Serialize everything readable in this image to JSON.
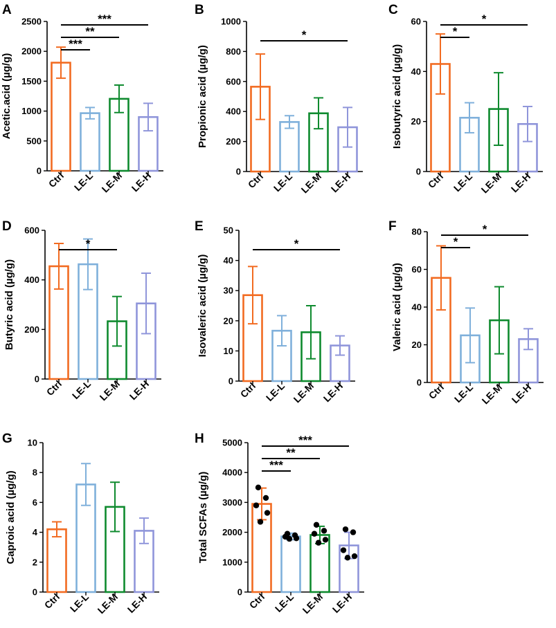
{
  "colors": {
    "Ctrl": "#F26B21",
    "LE-L": "#7FB0DB",
    "LE-M": "#0E8A2E",
    "LE-H": "#8F95DA"
  },
  "chart_data": [
    {
      "panel": "A",
      "type": "bar",
      "ylabel": "Acetic.acid (µg/g)",
      "categories": [
        "Ctrl",
        "LE-L",
        "LE-M",
        "LE-H"
      ],
      "values": [
        1810,
        965,
        1205,
        900
      ],
      "errors": [
        260,
        95,
        230,
        230
      ],
      "ylim": [
        0,
        2500
      ],
      "yticks": [
        "0",
        "500",
        "1000",
        "1500",
        "2000",
        "2500"
      ],
      "significance": [
        {
          "from": "Ctrl",
          "to": "LE-L",
          "label": "***"
        },
        {
          "from": "Ctrl",
          "to": "LE-M",
          "label": "**"
        },
        {
          "from": "Ctrl",
          "to": "LE-H",
          "label": "***"
        }
      ]
    },
    {
      "panel": "B",
      "type": "bar",
      "ylabel": "Propionic acid (µg/g)",
      "categories": [
        "Ctrl",
        "LE-L",
        "LE-M",
        "LE-H"
      ],
      "values": [
        565,
        330,
        388,
        295
      ],
      "errors": [
        218,
        42,
        103,
        132
      ],
      "ylim": [
        0,
        1000
      ],
      "yticks": [
        "0",
        "200",
        "400",
        "600",
        "800",
        "1000"
      ],
      "significance": [
        {
          "from": "Ctrl",
          "to": "LE-H",
          "label": "*"
        }
      ]
    },
    {
      "panel": "C",
      "type": "bar",
      "ylabel": "Isobutyric acid (µg/g)",
      "categories": [
        "Ctrl",
        "LE-L",
        "LE-M",
        "LE-H"
      ],
      "values": [
        43,
        21.5,
        25,
        19
      ],
      "errors": [
        12,
        6,
        14.5,
        7
      ],
      "ylim": [
        0,
        60
      ],
      "yticks": [
        "0",
        "20",
        "40",
        "60"
      ],
      "significance": [
        {
          "from": "Ctrl",
          "to": "LE-L",
          "label": "*"
        },
        {
          "from": "Ctrl",
          "to": "LE-H",
          "label": "*"
        }
      ]
    },
    {
      "panel": "D",
      "type": "bar",
      "ylabel": "Butyric acid (µg/g)",
      "categories": [
        "Ctrl",
        "LE-L",
        "LE-M",
        "LE-H"
      ],
      "values": [
        455,
        463,
        233,
        305
      ],
      "errors": [
        92,
        102,
        100,
        122
      ],
      "ylim": [
        0,
        600
      ],
      "yticks": [
        "0",
        "200",
        "400",
        "600"
      ],
      "significance": [
        {
          "from": "Ctrl",
          "to": "LE-M",
          "label": "*"
        }
      ]
    },
    {
      "panel": "E",
      "type": "bar",
      "ylabel": "Isovaleric acid (µg/g)",
      "categories": [
        "Ctrl",
        "LE-L",
        "LE-M",
        "LE-H"
      ],
      "values": [
        28.5,
        16.7,
        16.2,
        11.8
      ],
      "errors": [
        9.5,
        5,
        8.8,
        3.2
      ],
      "ylim": [
        0,
        50
      ],
      "yticks": [
        "0",
        "10",
        "20",
        "30",
        "40",
        "50"
      ],
      "significance": [
        {
          "from": "Ctrl",
          "to": "LE-H",
          "label": "*"
        }
      ]
    },
    {
      "panel": "F",
      "type": "bar",
      "ylabel": "Valeric acid (µg/g)",
      "categories": [
        "Ctrl",
        "LE-L",
        "LE-M",
        "LE-H"
      ],
      "values": [
        55.5,
        25,
        33,
        23
      ],
      "errors": [
        17,
        14.5,
        17.8,
        5.5
      ],
      "ylim": [
        0,
        80
      ],
      "yticks": [
        "0",
        "20",
        "40",
        "60",
        "80"
      ],
      "significance": [
        {
          "from": "Ctrl",
          "to": "LE-L",
          "label": "*"
        },
        {
          "from": "Ctrl",
          "to": "LE-H",
          "label": "*"
        }
      ]
    },
    {
      "panel": "G",
      "type": "bar",
      "ylabel": "Caproic acid (µg/g)",
      "categories": [
        "Ctrl",
        "LE-L",
        "LE-M",
        "LE-H"
      ],
      "values": [
        4.2,
        7.2,
        5.7,
        4.1
      ],
      "errors": [
        0.5,
        1.4,
        1.65,
        0.85
      ],
      "ylim": [
        0,
        10
      ],
      "yticks": [
        "0",
        "2",
        "4",
        "6",
        "8",
        "10"
      ],
      "significance": []
    },
    {
      "panel": "H",
      "type": "bar",
      "ylabel": "Total SCFAs (µg/g)",
      "categories": [
        "Ctrl",
        "LE-L",
        "LE-M",
        "LE-H"
      ],
      "values": [
        2950,
        1860,
        1910,
        1560
      ],
      "errors": [
        530,
        110,
        290,
        440
      ],
      "ylim": [
        0,
        5000
      ],
      "yticks": [
        "0",
        "1000",
        "2000",
        "3000",
        "4000",
        "5000"
      ],
      "points": [
        [
          3500,
          3150,
          2900,
          2650,
          2350
        ],
        [
          1950,
          1900,
          1850,
          1800,
          1780
        ],
        [
          2250,
          2050,
          1950,
          1750,
          1650
        ],
        [
          2100,
          2000,
          1400,
          1200,
          1150
        ]
      ],
      "significance": [
        {
          "from": "Ctrl",
          "to": "LE-L",
          "label": "***"
        },
        {
          "from": "Ctrl",
          "to": "LE-M",
          "label": "**"
        },
        {
          "from": "Ctrl",
          "to": "LE-H",
          "label": "***"
        }
      ]
    }
  ]
}
